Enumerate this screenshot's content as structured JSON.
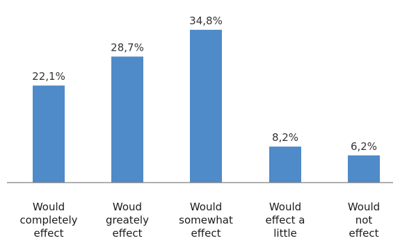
{
  "chart_data": {
    "type": "bar",
    "categories": [
      [
        "Would",
        "completely",
        "effect"
      ],
      [
        "Woud",
        "greately",
        "effect"
      ],
      [
        "Would",
        "somewhat",
        "effect"
      ],
      [
        "Would",
        "effect a",
        "little"
      ],
      [
        "Would",
        "not",
        "effect"
      ]
    ],
    "values": [
      22.1,
      28.7,
      34.8,
      8.2,
      6.2
    ],
    "value_labels": [
      "22,1%",
      "28,7%",
      "34,8%",
      "8,2%",
      "6,2%"
    ],
    "ylim": [
      0,
      40
    ],
    "grid": false,
    "legend": "none",
    "bar_color": "#4f8ac9"
  }
}
